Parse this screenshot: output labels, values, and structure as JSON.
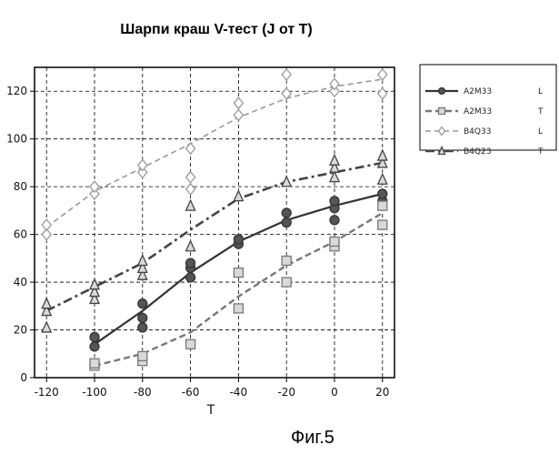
{
  "chart_data": {
    "type": "scatter",
    "title": "Шарпи краш V-тест (J от T)",
    "caption": "Фиг.5",
    "xlabel": "T",
    "ylabel": "",
    "xlim": [
      -125,
      25
    ],
    "ylim": [
      0,
      130
    ],
    "xticks": [
      -120,
      -100,
      -80,
      -60,
      -40,
      -20,
      0,
      20
    ],
    "yticks": [
      0,
      20,
      40,
      60,
      80,
      100,
      120
    ],
    "grid": true,
    "legend_position": "right",
    "series": [
      {
        "name": "A2M33",
        "legend_suffix": "L",
        "marker": "circle",
        "line": "solid",
        "color": "#333333",
        "points": [
          [
            -100,
            13
          ],
          [
            -100,
            17
          ],
          [
            -80,
            21
          ],
          [
            -80,
            25
          ],
          [
            -80,
            31
          ],
          [
            -60,
            42
          ],
          [
            -60,
            46
          ],
          [
            -60,
            48
          ],
          [
            -40,
            56
          ],
          [
            -40,
            58
          ],
          [
            -20,
            65
          ],
          [
            -20,
            69
          ],
          [
            0,
            66
          ],
          [
            0,
            71
          ],
          [
            0,
            74
          ],
          [
            20,
            74
          ],
          [
            20,
            77
          ]
        ],
        "trend": [
          [
            -100,
            14
          ],
          [
            -80,
            28
          ],
          [
            -60,
            44
          ],
          [
            -40,
            57
          ],
          [
            -20,
            66
          ],
          [
            0,
            72
          ],
          [
            20,
            77
          ]
        ]
      },
      {
        "name": "A2M33",
        "legend_suffix": "T",
        "marker": "square",
        "line": "dashed",
        "color": "#777777",
        "points": [
          [
            -100,
            5
          ],
          [
            -100,
            6
          ],
          [
            -80,
            7
          ],
          [
            -80,
            9
          ],
          [
            -60,
            14
          ],
          [
            -40,
            29
          ],
          [
            -40,
            44
          ],
          [
            -20,
            40
          ],
          [
            -20,
            49
          ],
          [
            0,
            55
          ],
          [
            0,
            57
          ],
          [
            20,
            64
          ],
          [
            20,
            72
          ]
        ],
        "trend": [
          [
            -100,
            5
          ],
          [
            -80,
            10
          ],
          [
            -60,
            19
          ],
          [
            -40,
            34
          ],
          [
            -20,
            47
          ],
          [
            0,
            57
          ],
          [
            20,
            69
          ]
        ]
      },
      {
        "name": "B4Q33",
        "legend_suffix": "L",
        "marker": "diamond",
        "line": "dashed-light",
        "color": "#999999",
        "points": [
          [
            -120,
            60
          ],
          [
            -120,
            64
          ],
          [
            -100,
            77
          ],
          [
            -100,
            80
          ],
          [
            -80,
            86
          ],
          [
            -80,
            89
          ],
          [
            -60,
            79
          ],
          [
            -60,
            84
          ],
          [
            -60,
            96
          ],
          [
            -40,
            110
          ],
          [
            -40,
            115
          ],
          [
            -20,
            119
          ],
          [
            -20,
            127
          ],
          [
            0,
            120
          ],
          [
            0,
            123
          ],
          [
            20,
            119
          ],
          [
            20,
            127
          ]
        ],
        "trend": [
          [
            -120,
            63
          ],
          [
            -100,
            78
          ],
          [
            -80,
            88
          ],
          [
            -60,
            98
          ],
          [
            -40,
            109
          ],
          [
            -20,
            117
          ],
          [
            0,
            122
          ],
          [
            20,
            125
          ]
        ]
      },
      {
        "name": "B4Q23",
        "legend_suffix": "T",
        "marker": "triangle",
        "line": "dash-dot",
        "color": "#444444",
        "points": [
          [
            -120,
            21
          ],
          [
            -120,
            28
          ],
          [
            -120,
            31
          ],
          [
            -100,
            33
          ],
          [
            -100,
            36
          ],
          [
            -100,
            39
          ],
          [
            -80,
            43
          ],
          [
            -80,
            46
          ],
          [
            -80,
            49
          ],
          [
            -60,
            55
          ],
          [
            -60,
            72
          ],
          [
            -40,
            76
          ],
          [
            -20,
            82
          ],
          [
            0,
            84
          ],
          [
            0,
            88
          ],
          [
            0,
            91
          ],
          [
            20,
            83
          ],
          [
            20,
            90
          ],
          [
            20,
            93
          ]
        ],
        "trend": [
          [
            -120,
            28
          ],
          [
            -100,
            38
          ],
          [
            -80,
            48
          ],
          [
            -60,
            62
          ],
          [
            -40,
            75
          ],
          [
            -20,
            82
          ],
          [
            0,
            86
          ],
          [
            20,
            90
          ]
        ]
      }
    ]
  }
}
